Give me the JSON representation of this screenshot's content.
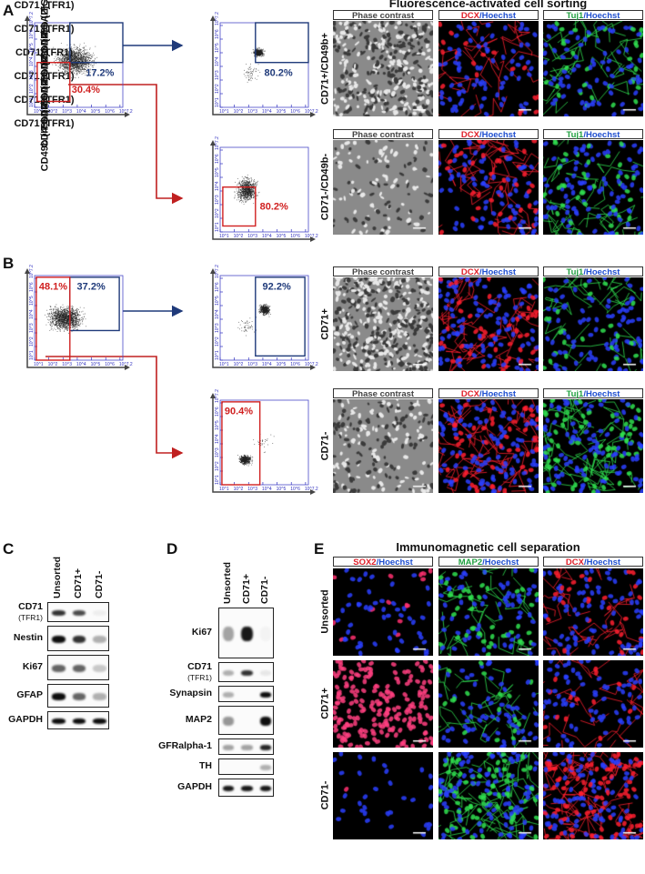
{
  "panels": {
    "A": "A",
    "B": "B",
    "C": "C",
    "D": "D",
    "E": "E"
  },
  "colors": {
    "gate_positive": "#1f3a7a",
    "gate_negative": "#d02020",
    "axis_ticks": "#3030c0",
    "hoechst": "#2040ff",
    "dcx": "#ff2030",
    "tuj1": "#30e050",
    "sox2": "#ff3050",
    "map2": "#30e050"
  },
  "facs_title": "Fluorescence-activated cell sorting",
  "ims_title": "Immunomagnetic cell separation",
  "flow": {
    "x_label": "CD71 (TFR1)",
    "x_label_alt": "CD71(TFR1)",
    "y_label": "CD49b (ITGA2)",
    "tick_labels": [
      "10^1",
      "10^2",
      "10^3",
      "10^4",
      "10^5",
      "10^6",
      "10^7.2"
    ],
    "A_pre": {
      "pos_gate_pct": "17.2%",
      "neg_gate_pct": "30.4%"
    },
    "A_pos_sorted": {
      "pos_gate_pct": "80.2%"
    },
    "A_neg_sorted": {
      "neg_gate_pct": "80.2%"
    },
    "B_pre": {
      "neg_gate_pct": "48.1%",
      "pos_gate_pct": "37.2%"
    },
    "B_pos_sorted": {
      "pos_gate_pct": "92.2%"
    },
    "B_neg_sorted": {
      "neg_gate_pct": "90.4%"
    }
  },
  "headers": {
    "phase": "Phase contrast",
    "dcx": "DCX",
    "tuj1": "Tuj1",
    "sox2": "SOX2",
    "map2": "MAP2",
    "hoechst": "/Hoechst"
  },
  "rows": {
    "A1": "CD71+/CD49b+",
    "A2": "CD71-/CD49b-",
    "B1": "CD71+",
    "B2": "CD71-",
    "E1": "Unsorted",
    "E2": "CD71+",
    "E3": "CD71-"
  },
  "blot_C": {
    "lanes": [
      "Unsorted",
      "CD71+",
      "CD71-"
    ],
    "rows": [
      {
        "label": "CD71",
        "sub": "(TFR1)",
        "intensity": [
          0.8,
          0.7,
          0.05
        ]
      },
      {
        "label": "Nestin",
        "intensity": [
          0.95,
          0.8,
          0.3
        ]
      },
      {
        "label": "Ki67",
        "intensity": [
          0.6,
          0.6,
          0.2
        ]
      },
      {
        "label": "GFAP",
        "intensity": [
          0.95,
          0.6,
          0.3
        ]
      },
      {
        "label": "GAPDH",
        "intensity": [
          0.95,
          0.95,
          0.95
        ]
      }
    ]
  },
  "blot_D": {
    "lanes": [
      "Unsorted",
      "CD71+",
      "CD71-"
    ],
    "rows": [
      {
        "label": "Ki67",
        "intensity": [
          0.35,
          0.9,
          0.03
        ]
      },
      {
        "label": "CD71",
        "sub": "(TFR1)",
        "intensity": [
          0.3,
          0.8,
          0.08
        ]
      },
      {
        "label": "Synapsin",
        "intensity": [
          0.3,
          0.0,
          0.95
        ]
      },
      {
        "label": "MAP2",
        "intensity": [
          0.4,
          0.0,
          0.95
        ]
      },
      {
        "label": "GFRalpha-1",
        "intensity": [
          0.35,
          0.35,
          0.85
        ]
      },
      {
        "label": "TH",
        "intensity": [
          0.0,
          0.0,
          0.3
        ]
      },
      {
        "label": "GAPDH",
        "intensity": [
          0.9,
          0.9,
          0.9
        ]
      }
    ]
  }
}
